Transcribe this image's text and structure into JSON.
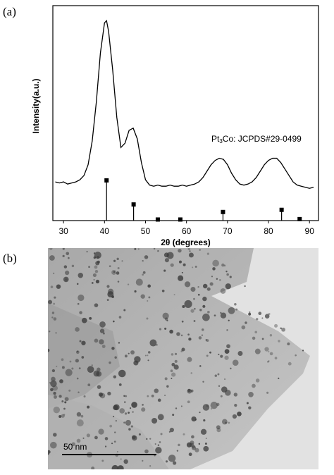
{
  "panel_labels": [
    "(a)",
    "(b)"
  ],
  "chart_data": {
    "type": "line",
    "x_label": "2θ (degrees)",
    "y_label": "Intensity(a.u.)",
    "annotation": [
      "Pt",
      "3",
      "Co: JCPDS#29-0499"
    ],
    "x": [
      28,
      29,
      30,
      31,
      32,
      33,
      34,
      35,
      36,
      37,
      38,
      39,
      40,
      40.5,
      41,
      42,
      43,
      44,
      45,
      46,
      47,
      48,
      49,
      50,
      51,
      52,
      53,
      54,
      55,
      56,
      57,
      58,
      59,
      60,
      61,
      62,
      63,
      64,
      65,
      66,
      67,
      68,
      69,
      70,
      71,
      72,
      73,
      74,
      75,
      76,
      77,
      78,
      79,
      80,
      81,
      82,
      83,
      84,
      85,
      86,
      87,
      88,
      89,
      90,
      91
    ],
    "series": [
      {
        "color": "#000000",
        "values": [
          18,
          17.5,
          18,
          17,
          17.5,
          18,
          19,
          21,
          26,
          37,
          55,
          78,
          92,
          93,
          88,
          70,
          48,
          34,
          36,
          42,
          43,
          38,
          27,
          19,
          16.5,
          16,
          16.5,
          16,
          16,
          16.5,
          16,
          16,
          16.5,
          16,
          16.5,
          17,
          18,
          20,
          23,
          26,
          28,
          29,
          28.5,
          26,
          22,
          19,
          17,
          16.5,
          17,
          18,
          20,
          23,
          26,
          28,
          29,
          29,
          27,
          24,
          21,
          18,
          16.5,
          16,
          15.5,
          15,
          15.5
        ]
      }
    ],
    "reference": {
      "color": "#000000",
      "x": [
        40.5,
        47.1,
        53,
        58.5,
        68.9,
        83.2,
        87.6
      ],
      "values": [
        18.7,
        7.5,
        0.5,
        0.5,
        4,
        5,
        0.7
      ]
    },
    "xlim": [
      27.4,
      92.2
    ],
    "xticks": [
      30,
      40,
      50,
      60,
      70,
      80,
      90
    ],
    "ylim": [
      0,
      100
    ]
  },
  "image": {
    "scale_bar_label": "50 nm"
  }
}
